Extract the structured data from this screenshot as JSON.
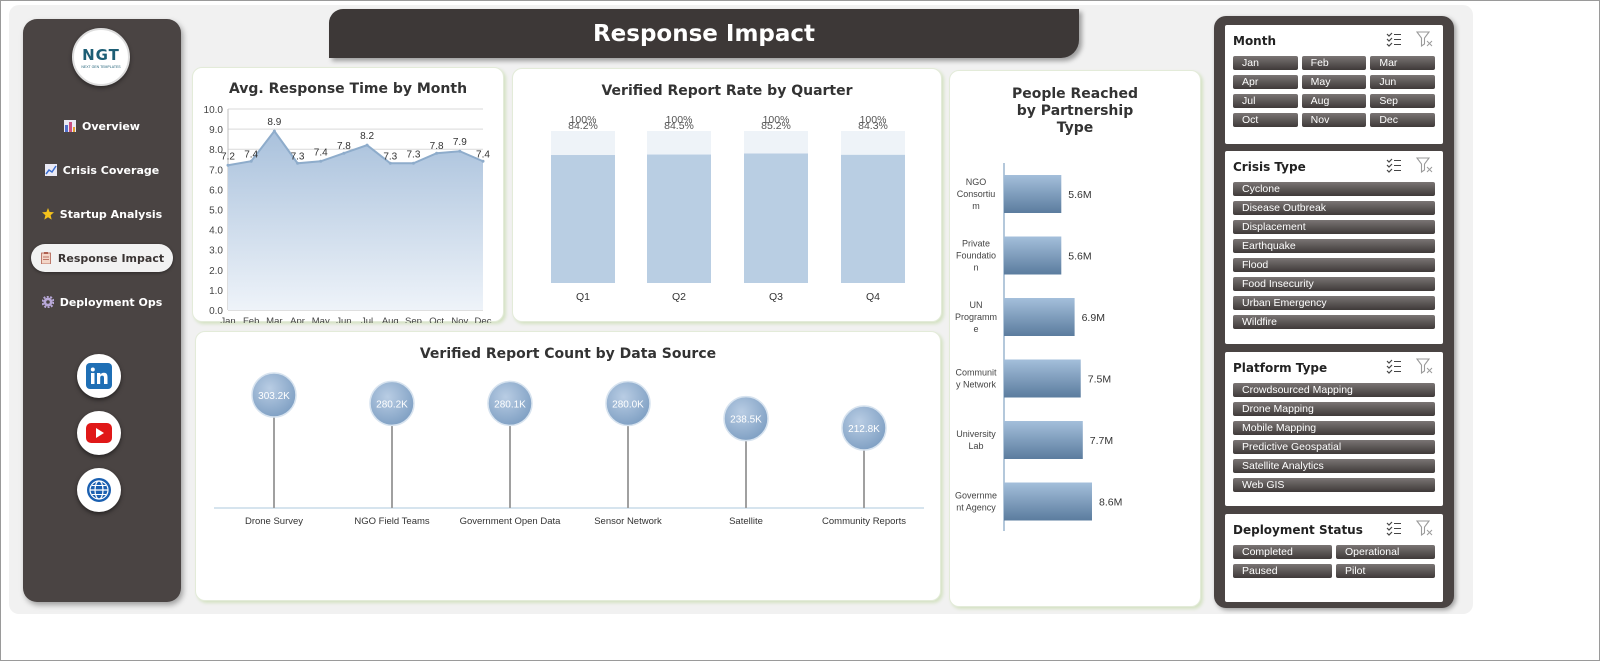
{
  "title": "Response Impact",
  "logo": {
    "text": "NGT",
    "tagline": "NEXT GEN TEMPLATES"
  },
  "nav": [
    {
      "label": "Overview",
      "icon": "bar-chart-icon",
      "active": false
    },
    {
      "label": "Crisis Coverage",
      "icon": "line-chart-icon",
      "active": false
    },
    {
      "label": "Startup Analysis",
      "icon": "star-icon",
      "active": false
    },
    {
      "label": "Response Impact",
      "icon": "clipboard-icon",
      "active": true
    },
    {
      "label": "Deployment Ops",
      "icon": "gear-icon",
      "active": false
    }
  ],
  "social": [
    "linkedin-icon",
    "youtube-icon",
    "globe-icon"
  ],
  "charts": {
    "response_time": {
      "title": "Avg. Response Time by Month",
      "chart_data": {
        "type": "area",
        "categories": [
          "Jan",
          "Feb",
          "Mar",
          "Apr",
          "May",
          "Jun",
          "Jul",
          "Aug",
          "Sep",
          "Oct",
          "Nov",
          "Dec"
        ],
        "values": [
          7.2,
          7.4,
          8.9,
          7.3,
          7.4,
          7.8,
          8.2,
          7.3,
          7.3,
          7.8,
          7.9,
          7.4
        ],
        "ylim": [
          0,
          10
        ],
        "yticks": [
          "0.0",
          "1.0",
          "2.0",
          "3.0",
          "4.0",
          "5.0",
          "6.0",
          "7.0",
          "8.0",
          "9.0",
          "10.0"
        ],
        "grid": true
      }
    },
    "verified_rate": {
      "title": "Verified Report Rate by Quarter",
      "chart_data": {
        "type": "bar",
        "categories": [
          "Q1",
          "Q2",
          "Q3",
          "Q4"
        ],
        "values": [
          84.2,
          84.5,
          85.2,
          84.3
        ],
        "value_labels": [
          "84.2%",
          "84.5%",
          "85.2%",
          "84.3%"
        ],
        "totals": [
          100,
          100,
          100,
          100
        ],
        "total_labels": [
          "100%",
          "100%",
          "100%",
          "100%"
        ]
      }
    },
    "report_count": {
      "title": "Verified Report Count by Data Source",
      "chart_data": {
        "type": "bar",
        "categories": [
          "Drone Survey",
          "NGO Field Teams",
          "Government Open Data",
          "Sensor Network",
          "Satellite",
          "Community Reports"
        ],
        "values": [
          303.2,
          280.2,
          280.1,
          280.0,
          238.5,
          212.8
        ],
        "value_labels": [
          "303.2K",
          "280.2K",
          "280.1K",
          "280.0K",
          "238.5K",
          "212.8K"
        ]
      }
    },
    "people_reached": {
      "title": "People Reached by Partnership Type",
      "chart_data": {
        "type": "bar",
        "orientation": "horizontal",
        "categories": [
          "NGO Consortium",
          "Private Foundation",
          "UN Programme",
          "Community Network",
          "University Lab",
          "Government Agency"
        ],
        "category_lines": [
          [
            "NGO",
            "Consortiu",
            "m"
          ],
          [
            "Private",
            "Foundatio",
            "n"
          ],
          [
            "UN",
            "Programm",
            "e"
          ],
          [
            "Communit",
            "y Network"
          ],
          [
            "University",
            "Lab"
          ],
          [
            "Governme",
            "nt Agency"
          ]
        ],
        "values": [
          5.6,
          5.6,
          6.9,
          7.5,
          7.7,
          8.6
        ],
        "value_labels": [
          "5.6M",
          "5.6M",
          "6.9M",
          "7.5M",
          "7.7M",
          "8.6M"
        ]
      }
    }
  },
  "slicers": [
    {
      "title": "Month",
      "columns": 3,
      "items": [
        "Jan",
        "Feb",
        "Mar",
        "Apr",
        "May",
        "Jun",
        "Jul",
        "Aug",
        "Sep",
        "Oct",
        "Nov",
        "Dec"
      ]
    },
    {
      "title": "Crisis Type",
      "columns": 1,
      "items": [
        "Cyclone",
        "Disease Outbreak",
        "Displacement",
        "Earthquake",
        "Flood",
        "Food Insecurity",
        "Urban Emergency",
        "Wildfire"
      ]
    },
    {
      "title": "Platform Type",
      "columns": 1,
      "items": [
        "Crowdsourced Mapping",
        "Drone Mapping",
        "Mobile Mapping",
        "Predictive Geospatial",
        "Satellite Analytics",
        "Web GIS"
      ]
    },
    {
      "title": "Deployment Status",
      "columns": 2,
      "items": [
        "Completed",
        "Operational",
        "Paused",
        "Pilot"
      ]
    }
  ]
}
